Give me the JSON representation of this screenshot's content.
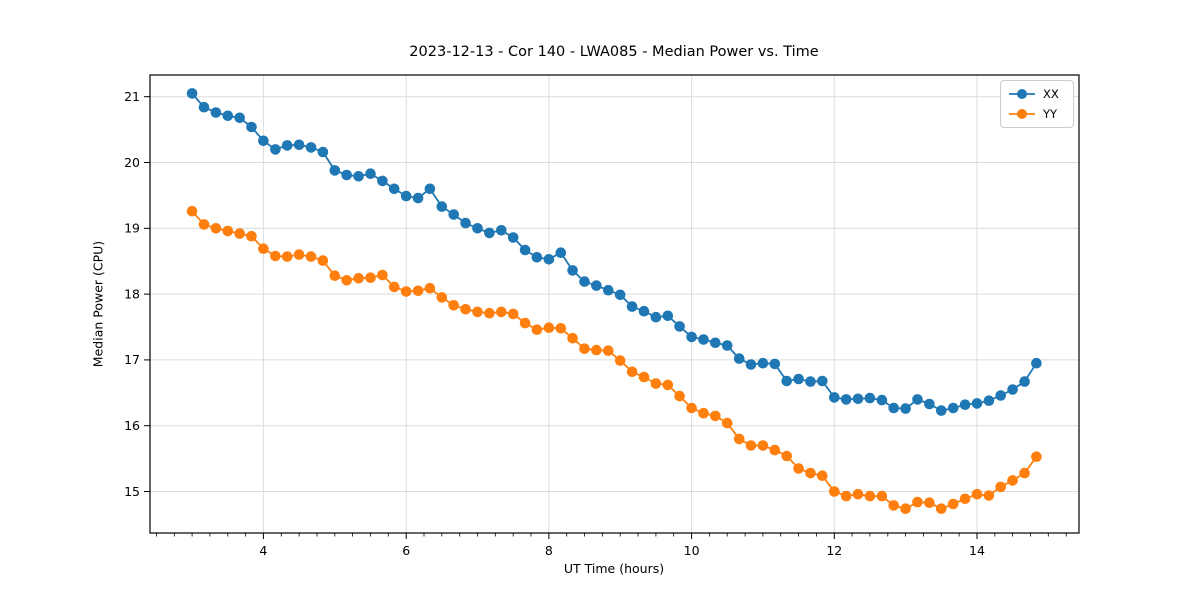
{
  "figure": {
    "background_color": "#ffffff",
    "grid_color": "#dcdcdc",
    "spine_color": "#000000"
  },
  "chart_data": {
    "type": "line",
    "title": "2023-12-13 - Cor 140 - LWA085 - Median Power vs. Time",
    "xlabel": "UT Time (hours)",
    "ylabel": "Median Power (CPU)",
    "xlim": [
      2.41,
      15.43
    ],
    "ylim": [
      14.37,
      21.33
    ],
    "x_ticks": [
      4,
      6,
      8,
      10,
      12,
      14
    ],
    "y_ticks": [
      15,
      16,
      17,
      18,
      19,
      20,
      21
    ],
    "x_minor_step": 0.25,
    "grid": true,
    "legend_position": "upper right",
    "x": [
      3.0,
      3.167,
      3.333,
      3.5,
      3.667,
      3.833,
      4.0,
      4.167,
      4.333,
      4.5,
      4.667,
      4.833,
      5.0,
      5.167,
      5.333,
      5.5,
      5.667,
      5.833,
      6.0,
      6.167,
      6.333,
      6.5,
      6.667,
      6.833,
      7.0,
      7.167,
      7.333,
      7.5,
      7.667,
      7.833,
      8.0,
      8.167,
      8.333,
      8.5,
      8.667,
      8.833,
      9.0,
      9.167,
      9.333,
      9.5,
      9.667,
      9.833,
      10.0,
      10.167,
      10.333,
      10.5,
      10.667,
      10.833,
      11.0,
      11.167,
      11.333,
      11.5,
      11.667,
      11.833,
      12.0,
      12.167,
      12.333,
      12.5,
      12.667,
      12.833,
      13.0,
      13.167,
      13.333,
      13.5,
      13.667,
      13.833,
      14.0,
      14.167,
      14.333,
      14.5,
      14.667,
      14.833
    ],
    "series": [
      {
        "name": "XX",
        "color": "#1f77b4",
        "values": [
          21.05,
          20.84,
          20.76,
          20.71,
          20.68,
          20.54,
          20.33,
          20.2,
          20.26,
          20.27,
          20.23,
          20.16,
          19.88,
          19.81,
          19.79,
          19.83,
          19.72,
          19.6,
          19.49,
          19.46,
          19.6,
          19.33,
          19.21,
          19.08,
          19.0,
          18.93,
          18.97,
          18.86,
          18.67,
          18.56,
          18.53,
          18.63,
          18.36,
          18.19,
          18.13,
          18.06,
          17.99,
          17.81,
          17.74,
          17.65,
          17.67,
          17.51,
          17.35,
          17.31,
          17.26,
          17.22,
          17.02,
          16.93,
          16.95,
          16.94,
          16.68,
          16.71,
          16.67,
          16.68,
          16.43,
          16.4,
          16.41,
          16.42,
          16.39,
          16.27,
          16.26,
          16.4,
          16.33,
          16.23,
          16.27,
          16.32,
          16.34,
          16.38,
          16.46,
          16.55,
          16.67,
          16.95
        ]
      },
      {
        "name": "YY",
        "color": "#ff7f0e",
        "values": [
          19.26,
          19.06,
          19.0,
          18.96,
          18.92,
          18.88,
          18.69,
          18.58,
          18.57,
          18.6,
          18.57,
          18.51,
          18.28,
          18.21,
          18.24,
          18.25,
          18.29,
          18.11,
          18.04,
          18.05,
          18.09,
          17.95,
          17.83,
          17.77,
          17.73,
          17.71,
          17.73,
          17.7,
          17.56,
          17.46,
          17.49,
          17.48,
          17.33,
          17.17,
          17.15,
          17.14,
          16.99,
          16.82,
          16.74,
          16.64,
          16.62,
          16.45,
          16.27,
          16.19,
          16.15,
          16.04,
          15.8,
          15.7,
          15.7,
          15.63,
          15.54,
          15.35,
          15.28,
          15.24,
          15.0,
          14.93,
          14.96,
          14.93,
          14.93,
          14.79,
          14.74,
          14.84,
          14.83,
          14.74,
          14.81,
          14.89,
          14.96,
          14.94,
          15.07,
          15.17,
          15.28,
          15.53
        ]
      }
    ]
  }
}
